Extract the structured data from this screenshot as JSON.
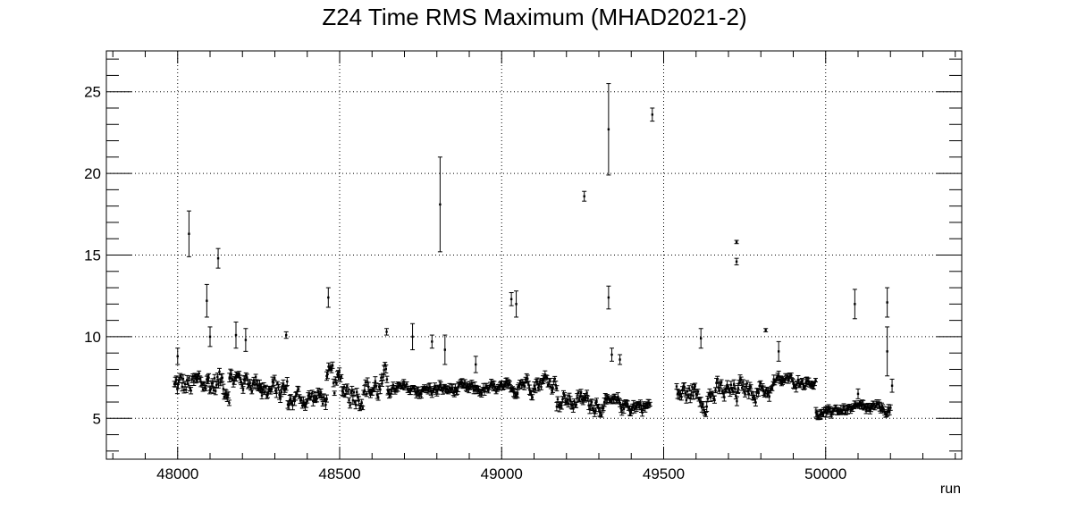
{
  "chart_data": {
    "type": "scatter",
    "title": "Z24 Time RMS Maximum (MHAD2021-2)",
    "xlabel": "run",
    "ylabel": "",
    "xlim": [
      47780,
      50420
    ],
    "ylim": [
      2.5,
      27.5
    ],
    "grid": true,
    "x_major_ticks": [
      48000,
      48500,
      49000,
      49500,
      50000
    ],
    "y_major_ticks": [
      5,
      10,
      15,
      20,
      25
    ],
    "x_tick_labels": [
      "48000",
      "48500",
      "49000",
      "49500",
      "50000"
    ],
    "y_tick_labels": [
      "5",
      "10",
      "15",
      "20",
      "25"
    ],
    "outliers": [
      {
        "x": 48035,
        "y": 16.3,
        "err": 1.4
      },
      {
        "x": 48090,
        "y": 12.2,
        "err": 1.0
      },
      {
        "x": 48125,
        "y": 14.8,
        "err": 0.6
      },
      {
        "x": 48465,
        "y": 12.4,
        "err": 0.6
      },
      {
        "x": 48810,
        "y": 18.1,
        "err": 2.9
      },
      {
        "x": 49255,
        "y": 18.6,
        "err": 0.3
      },
      {
        "x": 49330,
        "y": 22.7,
        "err": 2.8
      },
      {
        "x": 49330,
        "y": 12.4,
        "err": 0.7
      },
      {
        "x": 49465,
        "y": 23.6,
        "err": 0.4
      },
      {
        "x": 49725,
        "y": 15.8,
        "err": 0.1
      },
      {
        "x": 49725,
        "y": 14.6,
        "err": 0.2
      },
      {
        "x": 50090,
        "y": 12.0,
        "err": 0.9
      },
      {
        "x": 50190,
        "y": 12.1,
        "err": 0.9
      },
      {
        "x": 50190,
        "y": 9.1,
        "err": 1.5
      },
      {
        "x": 50205,
        "y": 7.0,
        "err": 0.4
      }
    ],
    "bulk_segments": [
      {
        "x_start": 47990,
        "x_end": 48060,
        "y_low": 4.8,
        "y_high": 9.0,
        "step": 3
      },
      {
        "x_start": 48060,
        "x_end": 48160,
        "y_low": 4.9,
        "y_high": 9.5,
        "step": 3
      },
      {
        "x_start": 48160,
        "x_end": 48260,
        "y_low": 5.8,
        "y_high": 8.8,
        "step": 3
      },
      {
        "x_start": 48260,
        "x_end": 48340,
        "y_low": 4.8,
        "y_high": 8.5,
        "step": 3
      },
      {
        "x_start": 48340,
        "x_end": 48460,
        "y_low": 4.9,
        "y_high": 7.6,
        "step": 3
      },
      {
        "x_start": 48460,
        "x_end": 48650,
        "y_low": 4.6,
        "y_high": 9.2,
        "step": 3
      },
      {
        "x_start": 48650,
        "x_end": 49050,
        "y_low": 6.0,
        "y_high": 7.5,
        "step": 3
      },
      {
        "x_start": 49050,
        "x_end": 49170,
        "y_low": 6.0,
        "y_high": 8.6,
        "step": 3
      },
      {
        "x_start": 49170,
        "x_end": 49290,
        "y_low": 4.7,
        "y_high": 7.4,
        "step": 3
      },
      {
        "x_start": 49290,
        "x_end": 49460,
        "y_low": 4.8,
        "y_high": 6.8,
        "step": 3
      },
      {
        "x_start": 49540,
        "x_end": 49730,
        "y_low": 4.8,
        "y_high": 8.2,
        "step": 3
      },
      {
        "x_start": 49730,
        "x_end": 49840,
        "y_low": 5.5,
        "y_high": 8.1,
        "step": 3
      },
      {
        "x_start": 49840,
        "x_end": 49970,
        "y_low": 6.6,
        "y_high": 8.0,
        "step": 3
      },
      {
        "x_start": 49970,
        "x_end": 50020,
        "y_low": 4.7,
        "y_high": 5.8,
        "step": 3
      },
      {
        "x_start": 50020,
        "x_end": 50200,
        "y_low": 4.9,
        "y_high": 6.2,
        "step": 3
      }
    ],
    "moderate_points": [
      {
        "x": 48000,
        "y": 8.8,
        "err": 0.5
      },
      {
        "x": 48100,
        "y": 10.0,
        "err": 0.6
      },
      {
        "x": 48180,
        "y": 10.1,
        "err": 0.8
      },
      {
        "x": 48210,
        "y": 9.8,
        "err": 0.7
      },
      {
        "x": 48335,
        "y": 10.1,
        "err": 0.2
      },
      {
        "x": 48645,
        "y": 10.3,
        "err": 0.2
      },
      {
        "x": 48725,
        "y": 10.0,
        "err": 0.8
      },
      {
        "x": 48785,
        "y": 9.7,
        "err": 0.4
      },
      {
        "x": 48825,
        "y": 9.2,
        "err": 0.9
      },
      {
        "x": 48920,
        "y": 8.3,
        "err": 0.5
      },
      {
        "x": 49030,
        "y": 12.3,
        "err": 0.4
      },
      {
        "x": 49045,
        "y": 12.0,
        "err": 0.8
      },
      {
        "x": 49340,
        "y": 8.9,
        "err": 0.4
      },
      {
        "x": 49365,
        "y": 8.6,
        "err": 0.3
      },
      {
        "x": 49615,
        "y": 9.9,
        "err": 0.6
      },
      {
        "x": 49815,
        "y": 10.4,
        "err": 0.1
      },
      {
        "x": 49855,
        "y": 9.1,
        "err": 0.6
      },
      {
        "x": 50100,
        "y": 6.5,
        "err": 0.3
      }
    ]
  }
}
